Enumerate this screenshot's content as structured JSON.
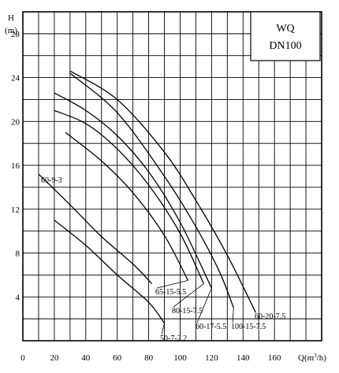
{
  "chart_data": {
    "type": "line",
    "ylabel": "H",
    "yunit": "(m)",
    "xlabel_prefix": "Q(m",
    "xlabel_sup": "3",
    "xlabel_suffix": "/h)",
    "box_line1": "WQ",
    "box_line2": "DN100",
    "xlim": [
      0,
      190
    ],
    "ylim": [
      0,
      30
    ],
    "grid": true,
    "x_ticks": [
      0,
      20,
      40,
      60,
      80,
      100,
      120,
      140,
      160
    ],
    "y_ticks": [
      4,
      8,
      12,
      16,
      20,
      24,
      28
    ],
    "series": [
      {
        "label": "60-9-3",
        "x": [
          10,
          30,
          50,
          70,
          82
        ],
        "y": [
          15.2,
          12.4,
          9.5,
          7.0,
          5.2
        ]
      },
      {
        "label": "50-7-2.2",
        "x": [
          20,
          40,
          60,
          80,
          90
        ],
        "y": [
          11.0,
          8.7,
          6.0,
          3.5,
          1.6
        ]
      },
      {
        "label": "65-15-5.5",
        "x": [
          27,
          50,
          70,
          90,
          105
        ],
        "y": [
          19.0,
          16.4,
          13.5,
          9.6,
          5.5
        ]
      },
      {
        "label": "80-15-7.5",
        "x": [
          20,
          40,
          60,
          80,
          100,
          115
        ],
        "y": [
          21.0,
          19.8,
          17.5,
          14.2,
          9.8,
          5.2
        ]
      },
      {
        "label": "60-17-5.5",
        "x": [
          20,
          40,
          60,
          80,
          100,
          120
        ],
        "y": [
          22.6,
          21.0,
          18.7,
          15.4,
          10.8,
          4.8
        ]
      },
      {
        "label": "100-15-7.5",
        "x": [
          30,
          60,
          90,
          110,
          125,
          134
        ],
        "y": [
          24.4,
          20.8,
          15.0,
          10.4,
          6.3,
          3.0
        ]
      },
      {
        "label": "60-20-7.5",
        "x": [
          30,
          60,
          90,
          110,
          130,
          148
        ],
        "y": [
          24.6,
          22.0,
          17.2,
          12.8,
          7.8,
          2.6
        ]
      }
    ]
  }
}
